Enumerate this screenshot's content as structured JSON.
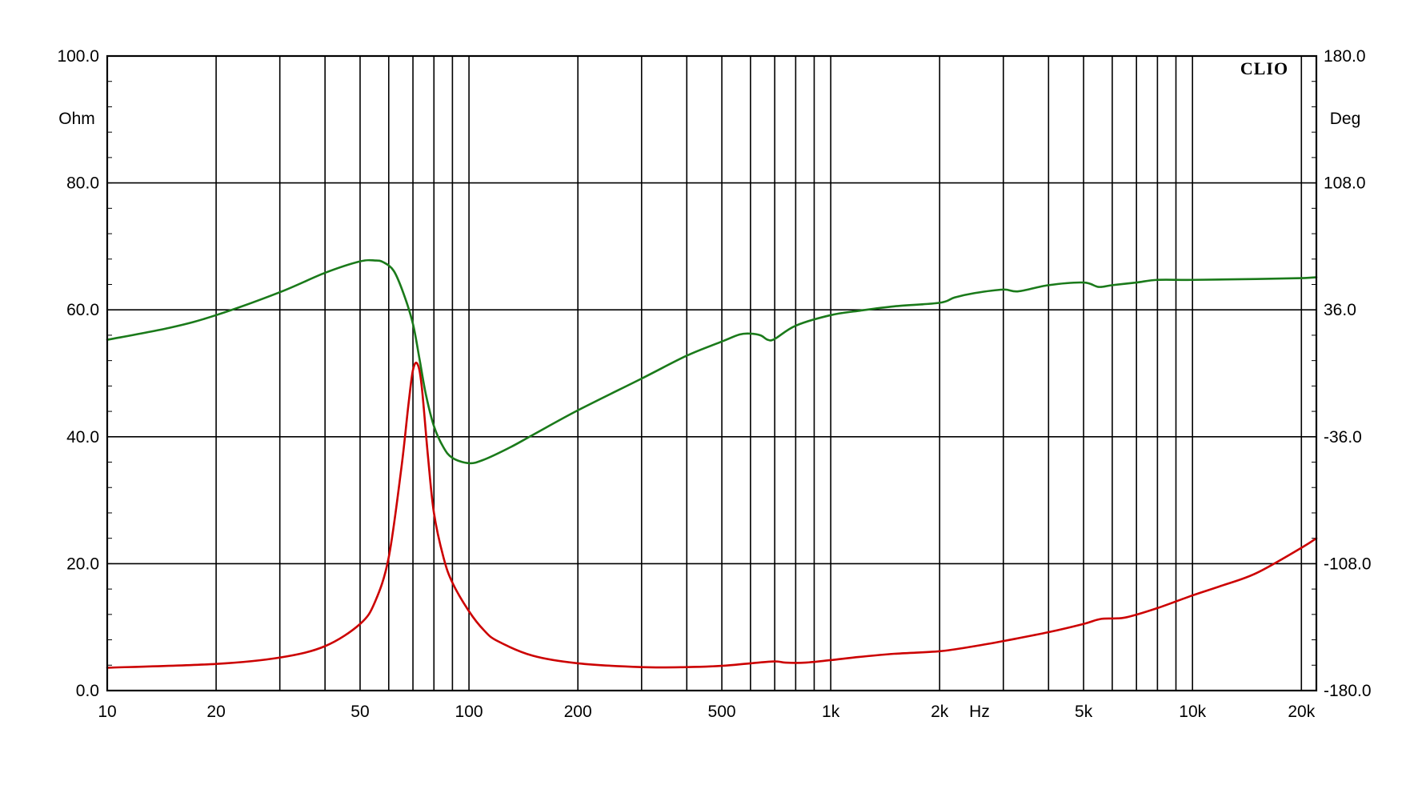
{
  "chart_data": {
    "type": "line",
    "brand": "CLIO",
    "x_unit": "Hz",
    "left_unit": "Ohm",
    "right_unit": "Deg",
    "x_scale": "log",
    "xlim": [
      10,
      22000
    ],
    "ylim_left": [
      0,
      100
    ],
    "ylim_right": [
      -180,
      180
    ],
    "grid": true,
    "x_ticks": [
      {
        "value": 10,
        "label": "10"
      },
      {
        "value": 20,
        "label": "20"
      },
      {
        "value": 50,
        "label": "50"
      },
      {
        "value": 100,
        "label": "100"
      },
      {
        "value": 200,
        "label": "200"
      },
      {
        "value": 500,
        "label": "500"
      },
      {
        "value": 1000,
        "label": "1k"
      },
      {
        "value": 2000,
        "label": "2k"
      },
      {
        "value": 5000,
        "label": "5k"
      },
      {
        "value": 10000,
        "label": "10k"
      },
      {
        "value": 20000,
        "label": "20k"
      }
    ],
    "left_ticks": [
      {
        "value": 0,
        "label": "0.0"
      },
      {
        "value": 20,
        "label": "20.0"
      },
      {
        "value": 40,
        "label": "40.0"
      },
      {
        "value": 60,
        "label": "60.0"
      },
      {
        "value": 80,
        "label": "80.0"
      },
      {
        "value": 100,
        "label": "100.0"
      }
    ],
    "right_ticks": [
      {
        "value": -180,
        "label": "-180.0"
      },
      {
        "value": -108,
        "label": "-108.0"
      },
      {
        "value": -36,
        "label": "-36.0"
      },
      {
        "value": 36,
        "label": "36.0"
      },
      {
        "value": 108,
        "label": "108.0"
      },
      {
        "value": 180,
        "label": "180.0"
      }
    ],
    "series": [
      {
        "axis": "left",
        "color": "#cc0000",
        "points": [
          [
            10,
            3.6
          ],
          [
            20,
            4.2
          ],
          [
            30,
            5.2
          ],
          [
            40,
            7.0
          ],
          [
            50,
            10.5
          ],
          [
            55,
            14.0
          ],
          [
            60,
            21.0
          ],
          [
            65,
            35.0
          ],
          [
            68,
            45.0
          ],
          [
            70,
            50.5
          ],
          [
            72,
            51.5
          ],
          [
            74,
            48.0
          ],
          [
            77,
            37.0
          ],
          [
            80,
            28.0
          ],
          [
            85,
            21.0
          ],
          [
            90,
            17.0
          ],
          [
            100,
            12.5
          ],
          [
            110,
            9.5
          ],
          [
            120,
            7.8
          ],
          [
            150,
            5.5
          ],
          [
            200,
            4.3
          ],
          [
            300,
            3.7
          ],
          [
            400,
            3.7
          ],
          [
            500,
            3.9
          ],
          [
            600,
            4.3
          ],
          [
            700,
            4.6
          ],
          [
            750,
            4.4
          ],
          [
            850,
            4.4
          ],
          [
            1000,
            4.8
          ],
          [
            1200,
            5.3
          ],
          [
            1500,
            5.8
          ],
          [
            2000,
            6.2
          ],
          [
            2500,
            7.0
          ],
          [
            3000,
            7.8
          ],
          [
            4000,
            9.2
          ],
          [
            5000,
            10.5
          ],
          [
            5600,
            11.3
          ],
          [
            6500,
            11.5
          ],
          [
            8000,
            13.0
          ],
          [
            10000,
            15.0
          ],
          [
            12000,
            16.5
          ],
          [
            15000,
            18.5
          ],
          [
            20000,
            22.5
          ],
          [
            22000,
            24.0
          ]
        ]
      },
      {
        "axis": "right",
        "color": "#1a7a1a",
        "points": [
          [
            10,
            19.0
          ],
          [
            15,
            26.0
          ],
          [
            20,
            33.0
          ],
          [
            30,
            46.0
          ],
          [
            40,
            57.0
          ],
          [
            50,
            63.5
          ],
          [
            55,
            64.0
          ],
          [
            58,
            63.0
          ],
          [
            62,
            58.0
          ],
          [
            66,
            45.0
          ],
          [
            70,
            28.0
          ],
          [
            73,
            8.0
          ],
          [
            76,
            -12.0
          ],
          [
            80,
            -30.0
          ],
          [
            85,
            -42.0
          ],
          [
            90,
            -48.0
          ],
          [
            100,
            -51.0
          ],
          [
            110,
            -49.0
          ],
          [
            130,
            -42.0
          ],
          [
            150,
            -35.0
          ],
          [
            200,
            -21.0
          ],
          [
            300,
            -3.0
          ],
          [
            400,
            10.0
          ],
          [
            500,
            18.0
          ],
          [
            560,
            22.0
          ],
          [
            600,
            22.5
          ],
          [
            640,
            21.5
          ],
          [
            670,
            19.0
          ],
          [
            700,
            19.5
          ],
          [
            800,
            27.0
          ],
          [
            1000,
            33.0
          ],
          [
            1200,
            35.5
          ],
          [
            1500,
            38.0
          ],
          [
            2000,
            40.0
          ],
          [
            2200,
            43.0
          ],
          [
            2500,
            45.5
          ],
          [
            3000,
            47.5
          ],
          [
            3300,
            46.5
          ],
          [
            4000,
            50.0
          ],
          [
            5000,
            51.5
          ],
          [
            5500,
            49.0
          ],
          [
            6000,
            50.0
          ],
          [
            7000,
            51.5
          ],
          [
            8000,
            53.0
          ],
          [
            10000,
            53.0
          ],
          [
            15000,
            53.5
          ],
          [
            20000,
            54.0
          ],
          [
            22000,
            54.5
          ]
        ]
      }
    ]
  }
}
